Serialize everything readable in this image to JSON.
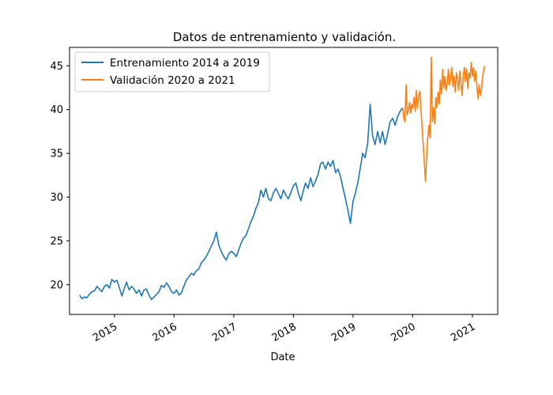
{
  "chart_data": {
    "type": "line",
    "title": "Datos de entrenamiento y validación.",
    "xlabel": "Date",
    "ylabel": "",
    "ylim": [
      16.6,
      47.1
    ],
    "xlim": [
      "2014-04-01",
      "2021-06-05"
    ],
    "x_ticks": [
      "2015",
      "2016",
      "2017",
      "2018",
      "2019",
      "2020",
      "2021"
    ],
    "y_ticks": [
      "20",
      "25",
      "30",
      "35",
      "40",
      "45"
    ],
    "grid": false,
    "legend_position": "top-left",
    "series": [
      {
        "name": "Entrenamiento 2014 a 2019",
        "color": "#1f77b4",
        "points": [
          [
            "2014-06-02",
            18.8
          ],
          [
            "2014-06-16",
            18.4
          ],
          [
            "2014-07-01",
            18.6
          ],
          [
            "2014-07-16",
            18.5
          ],
          [
            "2014-08-01",
            18.9
          ],
          [
            "2014-08-16",
            19.2
          ],
          [
            "2014-09-01",
            19.3
          ],
          [
            "2014-09-16",
            19.8
          ],
          [
            "2014-10-01",
            19.5
          ],
          [
            "2014-10-16",
            19.2
          ],
          [
            "2014-11-01",
            19.8
          ],
          [
            "2014-11-16",
            20.0
          ],
          [
            "2014-12-01",
            19.6
          ],
          [
            "2014-12-16",
            20.6
          ],
          [
            "2015-01-01",
            20.3
          ],
          [
            "2015-01-16",
            20.5
          ],
          [
            "2015-02-01",
            19.6
          ],
          [
            "2015-02-16",
            18.7
          ],
          [
            "2015-03-01",
            19.5
          ],
          [
            "2015-03-16",
            20.3
          ],
          [
            "2015-04-01",
            19.4
          ],
          [
            "2015-04-16",
            19.8
          ],
          [
            "2015-05-01",
            19.5
          ],
          [
            "2015-05-16",
            19.0
          ],
          [
            "2015-06-01",
            19.4
          ],
          [
            "2015-06-16",
            18.7
          ],
          [
            "2015-07-01",
            19.4
          ],
          [
            "2015-07-16",
            19.5
          ],
          [
            "2015-08-01",
            18.8
          ],
          [
            "2015-08-16",
            18.3
          ],
          [
            "2015-09-01",
            18.6
          ],
          [
            "2015-09-16",
            18.9
          ],
          [
            "2015-10-01",
            19.2
          ],
          [
            "2015-10-16",
            19.9
          ],
          [
            "2015-11-01",
            19.7
          ],
          [
            "2015-11-16",
            20.2
          ],
          [
            "2015-12-01",
            19.8
          ],
          [
            "2015-12-16",
            19.2
          ],
          [
            "2016-01-01",
            19.0
          ],
          [
            "2016-01-16",
            19.4
          ],
          [
            "2016-02-01",
            18.8
          ],
          [
            "2016-02-16",
            19.1
          ],
          [
            "2016-03-01",
            19.8
          ],
          [
            "2016-03-16",
            20.5
          ],
          [
            "2016-04-01",
            20.9
          ],
          [
            "2016-04-16",
            21.3
          ],
          [
            "2016-05-01",
            21.1
          ],
          [
            "2016-05-16",
            21.6
          ],
          [
            "2016-06-01",
            21.8
          ],
          [
            "2016-06-16",
            22.5
          ],
          [
            "2016-07-01",
            22.8
          ],
          [
            "2016-07-16",
            23.2
          ],
          [
            "2016-08-01",
            23.8
          ],
          [
            "2016-08-16",
            24.4
          ],
          [
            "2016-09-01",
            25.0
          ],
          [
            "2016-09-16",
            26.0
          ],
          [
            "2016-10-01",
            24.5
          ],
          [
            "2016-10-16",
            23.8
          ],
          [
            "2016-11-01",
            23.2
          ],
          [
            "2016-11-16",
            22.8
          ],
          [
            "2016-12-01",
            23.5
          ],
          [
            "2016-12-16",
            23.8
          ],
          [
            "2017-01-01",
            23.6
          ],
          [
            "2017-01-16",
            23.2
          ],
          [
            "2017-02-01",
            24.0
          ],
          [
            "2017-02-16",
            24.8
          ],
          [
            "2017-03-01",
            25.3
          ],
          [
            "2017-03-16",
            25.6
          ],
          [
            "2017-04-01",
            26.4
          ],
          [
            "2017-04-16",
            27.2
          ],
          [
            "2017-05-01",
            27.8
          ],
          [
            "2017-05-16",
            28.7
          ],
          [
            "2017-06-01",
            29.4
          ],
          [
            "2017-06-16",
            30.8
          ],
          [
            "2017-07-01",
            30.0
          ],
          [
            "2017-07-16",
            31.0
          ],
          [
            "2017-08-01",
            29.8
          ],
          [
            "2017-08-16",
            29.6
          ],
          [
            "2017-09-01",
            30.5
          ],
          [
            "2017-09-16",
            31.0
          ],
          [
            "2017-10-01",
            30.4
          ],
          [
            "2017-10-16",
            29.8
          ],
          [
            "2017-11-01",
            30.8
          ],
          [
            "2017-11-16",
            30.2
          ],
          [
            "2017-12-01",
            29.8
          ],
          [
            "2017-12-16",
            30.5
          ],
          [
            "2018-01-01",
            31.3
          ],
          [
            "2018-01-16",
            31.6
          ],
          [
            "2018-02-01",
            30.4
          ],
          [
            "2018-02-16",
            29.6
          ],
          [
            "2018-03-01",
            30.6
          ],
          [
            "2018-03-16",
            31.6
          ],
          [
            "2018-04-01",
            31.0
          ],
          [
            "2018-04-16",
            32.2
          ],
          [
            "2018-05-01",
            31.2
          ],
          [
            "2018-05-16",
            31.8
          ],
          [
            "2018-06-01",
            32.6
          ],
          [
            "2018-06-16",
            33.8
          ],
          [
            "2018-07-01",
            34.0
          ],
          [
            "2018-07-16",
            33.2
          ],
          [
            "2018-08-01",
            34.0
          ],
          [
            "2018-08-16",
            33.5
          ],
          [
            "2018-09-01",
            34.2
          ],
          [
            "2018-09-16",
            32.8
          ],
          [
            "2018-10-01",
            33.2
          ],
          [
            "2018-10-16",
            32.4
          ],
          [
            "2018-11-01",
            31.0
          ],
          [
            "2018-11-16",
            29.8
          ],
          [
            "2018-12-01",
            28.5
          ],
          [
            "2018-12-16",
            27.0
          ],
          [
            "2019-01-01",
            29.5
          ],
          [
            "2019-01-16",
            30.5
          ],
          [
            "2019-02-01",
            31.8
          ],
          [
            "2019-02-16",
            33.5
          ],
          [
            "2019-03-01",
            35.0
          ],
          [
            "2019-03-16",
            34.5
          ],
          [
            "2019-04-01",
            36.2
          ],
          [
            "2019-04-16",
            40.6
          ],
          [
            "2019-05-01",
            37.0
          ],
          [
            "2019-05-16",
            36.0
          ],
          [
            "2019-06-01",
            37.5
          ],
          [
            "2019-06-16",
            36.2
          ],
          [
            "2019-07-01",
            37.5
          ],
          [
            "2019-07-16",
            36.0
          ],
          [
            "2019-08-01",
            37.2
          ],
          [
            "2019-08-16",
            38.6
          ],
          [
            "2019-09-01",
            39.0
          ],
          [
            "2019-09-16",
            38.2
          ],
          [
            "2019-10-01",
            39.2
          ],
          [
            "2019-10-16",
            39.8
          ],
          [
            "2019-11-01",
            40.2
          ]
        ]
      },
      {
        "name": "Validación 2020 a 2021",
        "color": "#ff7f0e",
        "points": [
          [
            "2019-11-01",
            40.2
          ],
          [
            "2019-11-08",
            39.0
          ],
          [
            "2019-11-15",
            38.6
          ],
          [
            "2019-11-22",
            42.8
          ],
          [
            "2019-11-29",
            39.4
          ],
          [
            "2019-12-06",
            39.8
          ],
          [
            "2019-12-13",
            40.8
          ],
          [
            "2019-12-20",
            39.6
          ],
          [
            "2019-12-27",
            40.6
          ],
          [
            "2020-01-03",
            40.2
          ],
          [
            "2020-01-10",
            41.4
          ],
          [
            "2020-01-17",
            39.8
          ],
          [
            "2020-01-24",
            42.2
          ],
          [
            "2020-01-31",
            40.2
          ],
          [
            "2020-02-07",
            41.6
          ],
          [
            "2020-02-14",
            42.1
          ],
          [
            "2020-02-21",
            40.0
          ],
          [
            "2020-02-28",
            38.0
          ],
          [
            "2020-03-06",
            36.0
          ],
          [
            "2020-03-13",
            33.8
          ],
          [
            "2020-03-20",
            31.8
          ],
          [
            "2020-03-27",
            34.8
          ],
          [
            "2020-04-03",
            36.8
          ],
          [
            "2020-04-10",
            38.2
          ],
          [
            "2020-04-17",
            36.8
          ],
          [
            "2020-04-24",
            46.0
          ],
          [
            "2020-05-01",
            38.6
          ],
          [
            "2020-05-08",
            40.2
          ],
          [
            "2020-05-15",
            38.4
          ],
          [
            "2020-05-22",
            41.4
          ],
          [
            "2020-05-29",
            40.2
          ],
          [
            "2020-06-05",
            42.0
          ],
          [
            "2020-06-12",
            40.6
          ],
          [
            "2020-06-19",
            43.4
          ],
          [
            "2020-06-26",
            41.8
          ],
          [
            "2020-07-03",
            44.6
          ],
          [
            "2020-07-10",
            42.4
          ],
          [
            "2020-07-17",
            43.8
          ],
          [
            "2020-07-24",
            42.2
          ],
          [
            "2020-07-31",
            43.0
          ],
          [
            "2020-08-07",
            44.6
          ],
          [
            "2020-08-14",
            42.8
          ],
          [
            "2020-08-21",
            43.6
          ],
          [
            "2020-08-28",
            44.8
          ],
          [
            "2020-09-04",
            42.6
          ],
          [
            "2020-09-11",
            43.8
          ],
          [
            "2020-09-18",
            42.0
          ],
          [
            "2020-09-25",
            44.2
          ],
          [
            "2020-10-02",
            43.4
          ],
          [
            "2020-10-09",
            42.2
          ],
          [
            "2020-10-16",
            44.4
          ],
          [
            "2020-10-23",
            43.0
          ],
          [
            "2020-10-30",
            41.6
          ],
          [
            "2020-11-06",
            43.8
          ],
          [
            "2020-11-13",
            44.8
          ],
          [
            "2020-11-20",
            43.2
          ],
          [
            "2020-11-27",
            44.6
          ],
          [
            "2020-12-04",
            42.4
          ],
          [
            "2020-12-11",
            44.2
          ],
          [
            "2020-12-18",
            43.6
          ],
          [
            "2020-12-25",
            45.4
          ],
          [
            "2021-01-01",
            43.8
          ],
          [
            "2021-01-08",
            44.8
          ],
          [
            "2021-01-15",
            43.2
          ],
          [
            "2021-01-22",
            44.4
          ],
          [
            "2021-01-29",
            42.6
          ],
          [
            "2021-02-05",
            41.2
          ],
          [
            "2021-02-12",
            42.8
          ],
          [
            "2021-02-19",
            41.6
          ],
          [
            "2021-02-26",
            42.4
          ],
          [
            "2021-03-05",
            43.8
          ],
          [
            "2021-03-12",
            44.6
          ],
          [
            "2021-03-19",
            45.0
          ]
        ]
      }
    ]
  }
}
